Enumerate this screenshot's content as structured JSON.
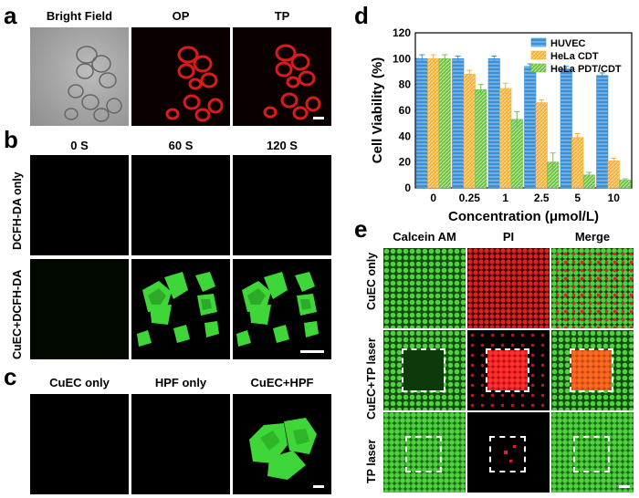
{
  "panels": {
    "a": {
      "letter": "a",
      "columns": [
        "Bright Field",
        "OP",
        "TP"
      ]
    },
    "b": {
      "letter": "b",
      "columns": [
        "0 S",
        "60 S",
        "120 S"
      ],
      "rows": [
        "DCFH-DA only",
        "CuEC+DCFH-DA"
      ]
    },
    "c": {
      "letter": "c",
      "columns": [
        "CuEC only",
        "HPF only",
        "CuEC+HPF"
      ]
    },
    "d": {
      "letter": "d"
    },
    "e": {
      "letter": "e",
      "columns": [
        "Calcein AM",
        "PI",
        "Merge"
      ],
      "rows": [
        "CuEC only",
        "CuEC+TP laser",
        "TP laser"
      ]
    }
  },
  "chart_data": {
    "type": "bar",
    "categories": [
      "0",
      "0.25",
      "1",
      "2.5",
      "5",
      "10"
    ],
    "xlabel": "Concentration (μmol/L)",
    "ylabel": "Cell Viability (%)",
    "ylim": [
      0,
      120
    ],
    "yticks": [
      0,
      20,
      40,
      60,
      80,
      100,
      120
    ],
    "legend_position": "top-right",
    "series": [
      {
        "name": "HUVEC",
        "color": "#3a8fd6",
        "values": [
          100,
          100,
          100,
          94,
          92,
          87
        ],
        "errors": [
          3,
          2,
          2,
          2,
          2,
          2
        ]
      },
      {
        "name": "HeLa CDT",
        "color": "#f5b041",
        "values": [
          100,
          88,
          77,
          66,
          39,
          21
        ],
        "errors": [
          3,
          3,
          4,
          2,
          3,
          2
        ]
      },
      {
        "name": "HeLa PDT/CDT",
        "color": "#6fc24a",
        "values": [
          100,
          76,
          53,
          20,
          10,
          6
        ],
        "errors": [
          3,
          4,
          6,
          7,
          2,
          1
        ]
      }
    ]
  }
}
